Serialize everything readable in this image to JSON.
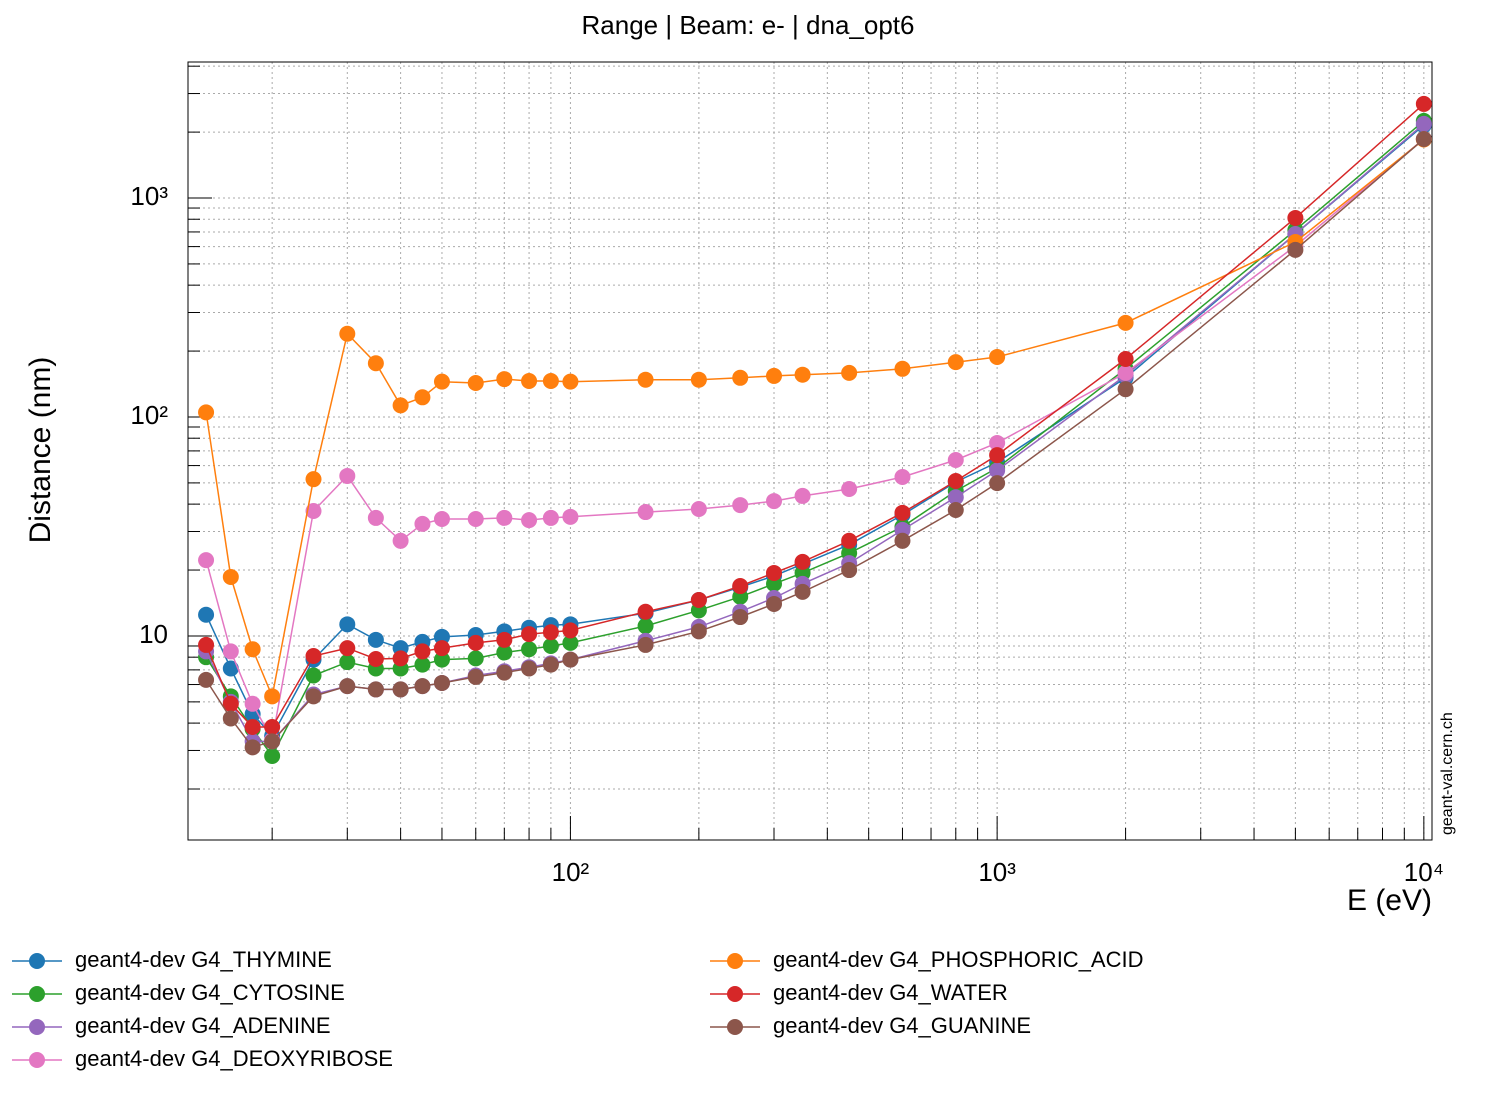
{
  "chart_data": {
    "type": "line",
    "title": "Range | Beam: e- | dna_opt6",
    "xlabel": "E (eV)",
    "ylabel": "Distance (nm)",
    "watermark": "geant-val.cern.ch",
    "xscale": "log",
    "yscale": "log",
    "grid": true,
    "x": [
      14,
      16,
      18,
      20,
      25,
      30,
      35,
      40,
      45,
      50,
      60,
      70,
      80,
      90,
      100,
      150,
      200,
      250,
      300,
      350,
      450,
      600,
      800,
      1000,
      2000,
      5000,
      10000
    ],
    "xlim": [
      12.7,
      10450
    ],
    "ylim": [
      1.17,
      4180
    ],
    "xticks": [
      {
        "value": 100,
        "label": "10²"
      },
      {
        "value": 1000,
        "label": "10³"
      },
      {
        "value": 10000,
        "label": "10⁴"
      }
    ],
    "yticks": [
      10,
      {
        "value": 100,
        "label": "10²"
      },
      {
        "value": 1000,
        "label": "10³"
      }
    ],
    "xminorticks": [
      20,
      30,
      40,
      50,
      60,
      70,
      80,
      90,
      200,
      300,
      400,
      500,
      600,
      700,
      800,
      900,
      2000,
      3000,
      4000,
      5000,
      6000,
      7000,
      8000,
      9000
    ],
    "yminorticks": [
      2,
      3,
      4,
      5,
      6,
      7,
      8,
      9,
      20,
      30,
      40,
      50,
      60,
      70,
      80,
      90,
      200,
      300,
      400,
      500,
      600,
      700,
      800,
      900,
      2000,
      3000,
      4000
    ],
    "series": [
      {
        "name": "geant4-dev G4_THYMINE",
        "color": "#1f77b4",
        "values": [
          12.5,
          7.1,
          4.4,
          3.5,
          7.8,
          11.3,
          9.6,
          8.8,
          9.4,
          9.9,
          10.1,
          10.5,
          10.9,
          11.2,
          11.3,
          12.7,
          14.6,
          16.7,
          18.8,
          21.3,
          26.1,
          35.7,
          50.5,
          62,
          151,
          685,
          2150
        ]
      },
      {
        "name": "geant4-dev G4_CYTOSINE",
        "color": "#2ca02c",
        "values": [
          8.0,
          5.3,
          3.76,
          2.83,
          6.6,
          7.6,
          7.1,
          7.1,
          7.4,
          7.8,
          7.9,
          8.4,
          8.7,
          9.0,
          9.3,
          11.1,
          13.1,
          15.1,
          17.3,
          19.4,
          23.9,
          31.5,
          45.9,
          58.5,
          166,
          714,
          2250
        ]
      },
      {
        "name": "geant4-dev G4_ADENINE",
        "color": "#9467bd",
        "values": [
          8.5,
          5.0,
          3.3,
          3.3,
          5.4,
          5.9,
          5.7,
          5.7,
          5.9,
          6.1,
          6.6,
          6.9,
          7.2,
          7.5,
          7.8,
          9.5,
          11.0,
          12.9,
          14.9,
          17.3,
          21.5,
          30.5,
          43.0,
          57,
          155,
          685,
          2180
        ]
      },
      {
        "name": "geant4-dev G4_DEOXYRIBOSE",
        "color": "#e377c2",
        "values": [
          22.2,
          8.5,
          4.9,
          3.35,
          37.2,
          53.8,
          34.6,
          27.2,
          32.5,
          34.2,
          34.2,
          34.6,
          33.8,
          34.6,
          35,
          36.8,
          38,
          39.6,
          41.3,
          43.6,
          46.9,
          53.2,
          63.6,
          76.1,
          159,
          604,
          1860
        ]
      },
      {
        "name": "geant4-dev G4_PHOSPHORIC_ACID",
        "color": "#ff7f0e",
        "values": [
          105,
          18.6,
          8.7,
          5.3,
          52,
          240,
          176,
          113,
          123,
          145,
          143,
          149,
          146,
          146,
          145,
          148,
          148,
          151,
          154,
          156,
          159,
          166,
          178,
          188,
          269,
          630,
          1850
        ]
      },
      {
        "name": "geant4-dev G4_WATER",
        "color": "#d62728",
        "values": [
          9.1,
          4.9,
          3.84,
          3.84,
          8.1,
          8.8,
          7.85,
          7.9,
          8.5,
          8.8,
          9.3,
          9.6,
          10.2,
          10.4,
          10.6,
          12.9,
          14.6,
          16.9,
          19.4,
          21.8,
          27.2,
          36.5,
          51,
          67,
          184,
          811,
          2690
        ]
      },
      {
        "name": "geant4-dev G4_GUANINE",
        "color": "#8c564b",
        "values": [
          6.3,
          4.2,
          3.1,
          3.3,
          5.3,
          5.9,
          5.7,
          5.7,
          5.9,
          6.1,
          6.5,
          6.8,
          7.1,
          7.4,
          7.8,
          9.1,
          10.5,
          12.2,
          14.0,
          15.9,
          20.0,
          27.2,
          37.6,
          49.9,
          134,
          580,
          1860
        ]
      }
    ]
  }
}
